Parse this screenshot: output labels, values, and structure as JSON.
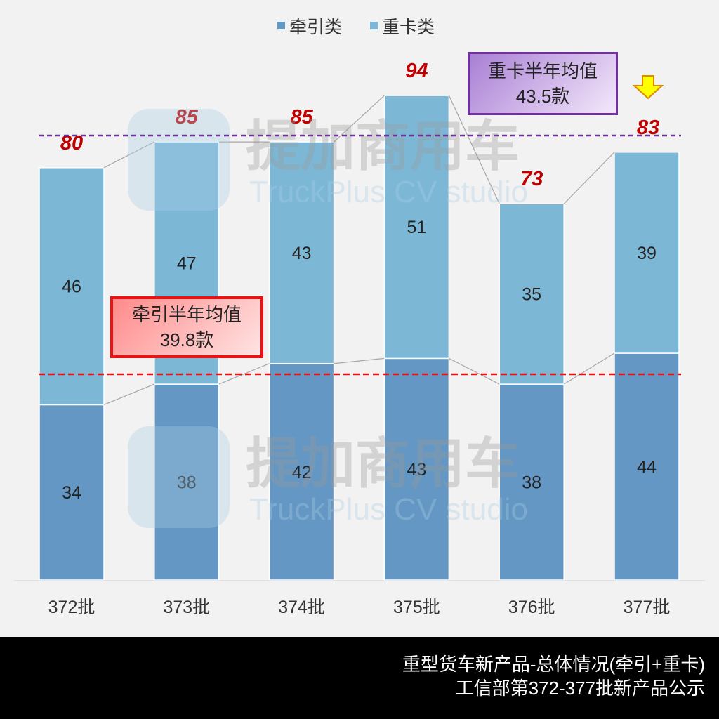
{
  "chart_data": {
    "type": "bar",
    "stacked": true,
    "categories": [
      "372批",
      "373批",
      "374批",
      "375批",
      "376批",
      "377批"
    ],
    "series": [
      {
        "name": "牵引类",
        "color": "#6497c3",
        "values": [
          34,
          38,
          42,
          43,
          38,
          44
        ]
      },
      {
        "name": "重卡类",
        "color": "#7db7d6",
        "values": [
          46,
          47,
          43,
          51,
          35,
          39
        ]
      }
    ],
    "totals": [
      80,
      85,
      85,
      94,
      73,
      83
    ],
    "ylim": [
      0,
      113
    ],
    "legend": "top-center",
    "annotations": {
      "tractor_avg": {
        "line1": "牵引半年均值",
        "line2": "39.8款",
        "value": 39.8,
        "color": "#ee1111"
      },
      "heavy_avg": {
        "line1": "重卡半年均值",
        "line2": "43.5款",
        "color": "#7030a0"
      }
    }
  },
  "watermark": {
    "cn": "提加商用车",
    "en": "TruckPlus  CV studio"
  },
  "footer": {
    "line1": "重型货车新产品-总体情况(牵引+重卡)",
    "line2": "工信部第372-377批新产品公示"
  }
}
